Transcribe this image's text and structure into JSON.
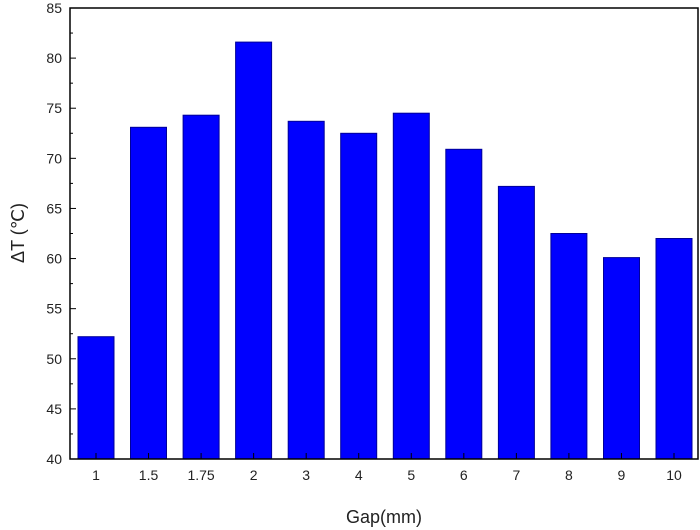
{
  "chart_data": {
    "type": "bar",
    "title": "",
    "xlabel": "Gap(mm)",
    "ylabel": "ΔT (℃)",
    "categories": [
      "1",
      "1.5",
      "1.75",
      "2",
      "3",
      "4",
      "5",
      "6",
      "7",
      "8",
      "9",
      "10"
    ],
    "values": [
      52.2,
      73.1,
      74.3,
      81.6,
      73.7,
      72.5,
      74.5,
      70.9,
      67.2,
      62.5,
      60.1,
      62.0
    ],
    "ylim": [
      40,
      85
    ],
    "yticks": [
      "40",
      "45",
      "50",
      "55",
      "60",
      "65",
      "70",
      "75",
      "80",
      "85"
    ],
    "grid": false,
    "colors": {
      "bar": "#0000ff",
      "bar_edge": "#00009a",
      "axis": "#000000"
    }
  }
}
